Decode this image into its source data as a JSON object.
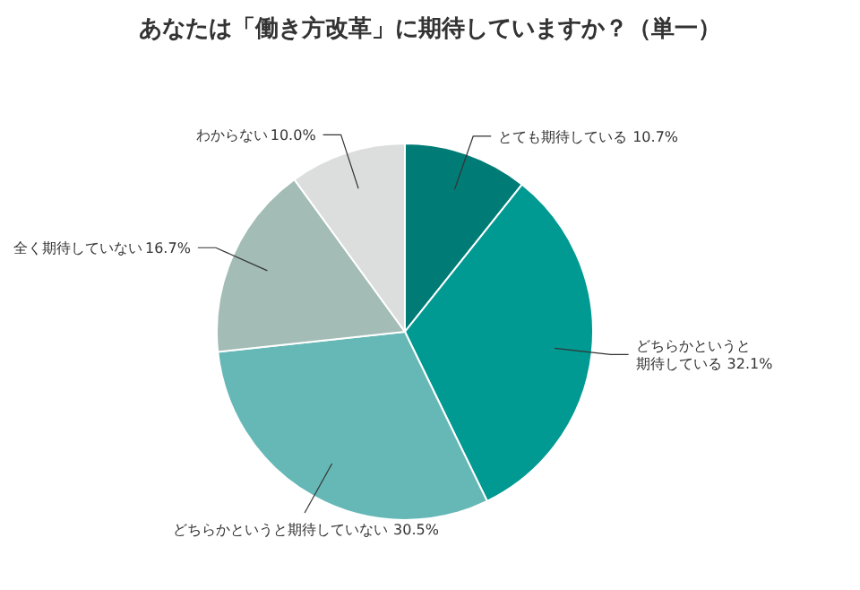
{
  "chart_data": {
    "type": "pie",
    "title": "あなたは「働き方改革」に期待していますか？（単一）",
    "categories": [
      "とても期待している",
      "どちらかというと期待している",
      "どちらかというと期待していない",
      "全く期待していない",
      "わからない"
    ],
    "values": [
      10.7,
      32.1,
      30.5,
      16.7,
      10.0
    ],
    "value_labels": [
      "10.7%",
      "32.1%",
      "30.5%",
      "16.7%",
      "10.0%"
    ],
    "colors": [
      "#007b76",
      "#009a93",
      "#66b8b6",
      "#a3bcb6",
      "#dcdddd"
    ]
  }
}
